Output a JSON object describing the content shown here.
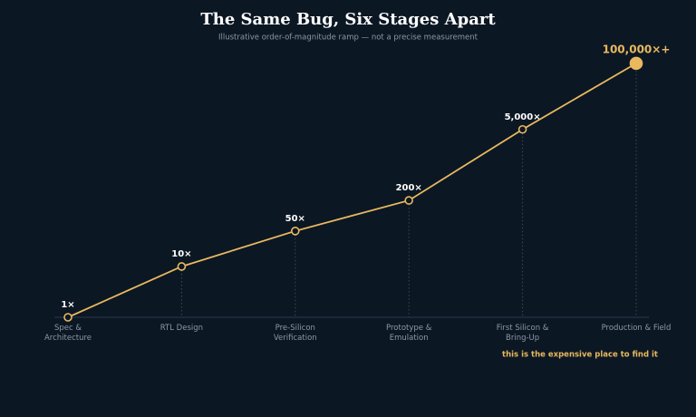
{
  "chart_data": {
    "type": "line",
    "title": "The Same Bug, Six Stages Apart",
    "subtitle": "Illustrative order-of-magnitude ramp — not a precise measurement",
    "categories": [
      "Spec & Architecture",
      "RTL Design",
      "Pre-Silicon Verification",
      "Prototype & Emulation",
      "First Silicon & Bring-Up",
      "Production & Field"
    ],
    "series": [
      {
        "values": [
          1,
          10,
          50,
          200,
          5000,
          100000
        ],
        "value_labels": [
          "1×",
          "10×",
          "50×",
          "200×",
          "5,000×",
          "100,000×+"
        ],
        "color": "#e8b95f"
      }
    ],
    "ylim": [
      1,
      200000
    ],
    "log_scale": true,
    "annotation": "this is the expensive place to find it"
  }
}
